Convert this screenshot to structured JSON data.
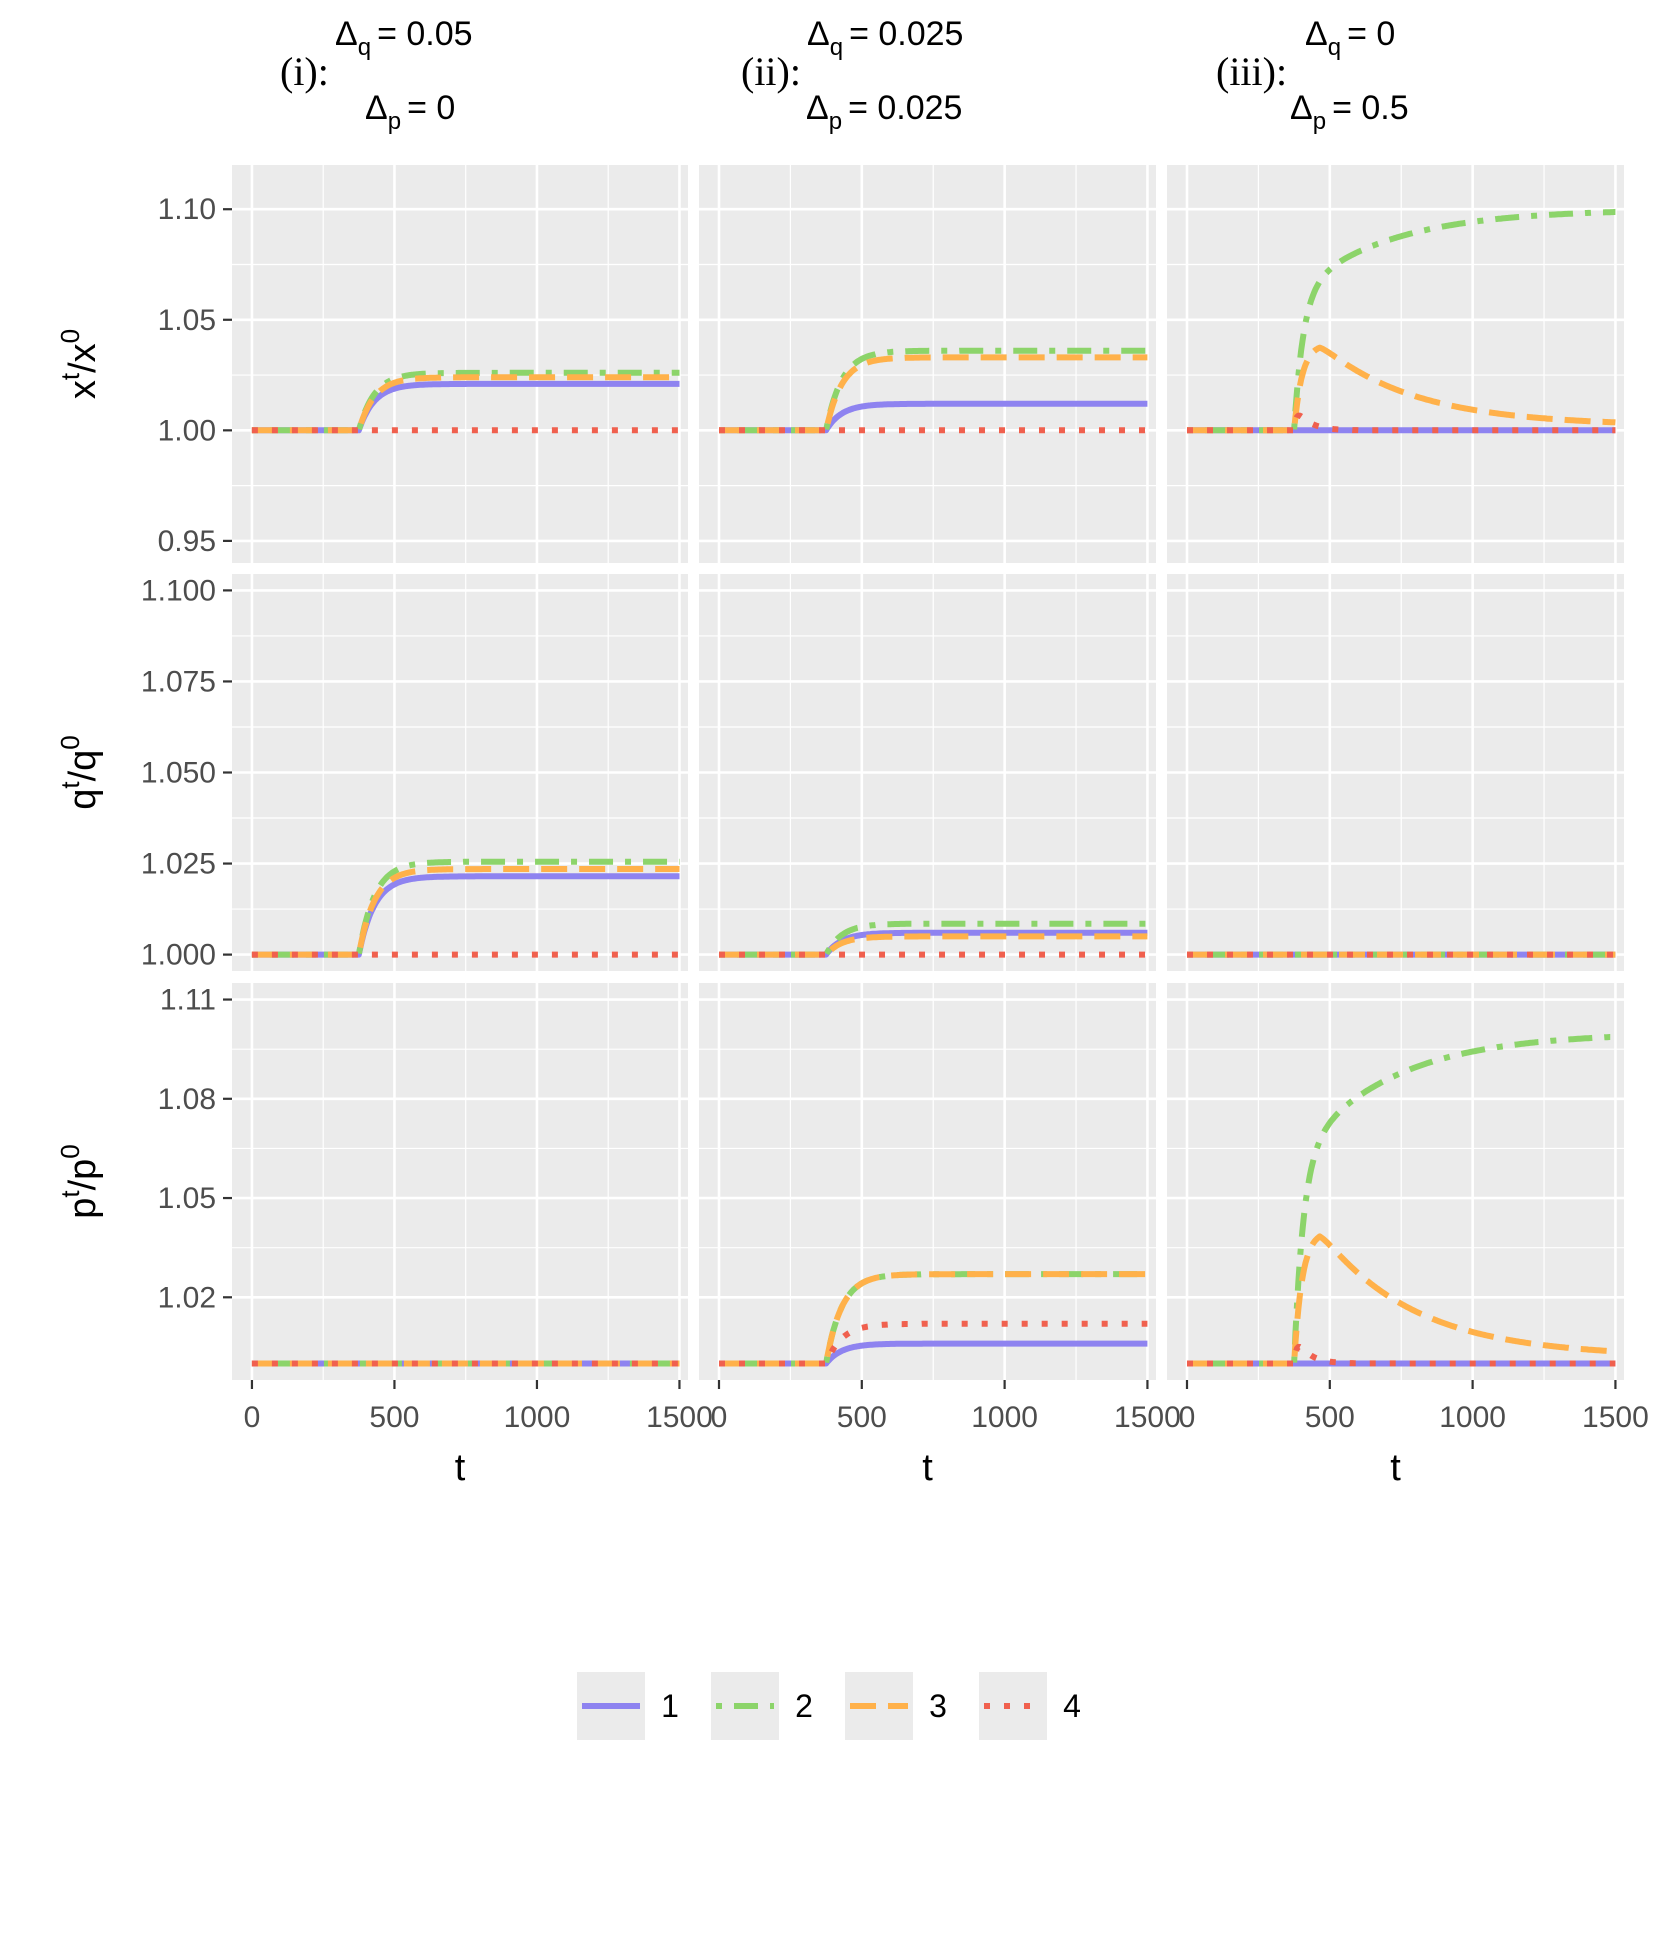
{
  "chart_data": {
    "type": "line",
    "x_label": "t",
    "x_ticks": [
      "0",
      "500",
      "1000",
      "1500"
    ],
    "xlim": [
      -70,
      1530
    ],
    "columns": [
      {
        "id": "i",
        "label": "(i):",
        "dq_sym": "Δ",
        "dq_sub": "q",
        "dq_val": "= 0.05",
        "dp_sym": "Δ",
        "dp_sub": "p",
        "dp_val": "= 0"
      },
      {
        "id": "ii",
        "label": "(ii):",
        "dq_sym": "Δ",
        "dq_sub": "q",
        "dq_val": "= 0.025",
        "dp_sym": "Δ",
        "dp_sub": "p",
        "dp_val": "= 0.025"
      },
      {
        "id": "iii",
        "label": "(iii):",
        "dq_sym": "Δ",
        "dq_sub": "q",
        "dq_val": "= 0",
        "dp_sym": "Δ",
        "dp_sub": "p",
        "dp_val": "= 0.5"
      }
    ],
    "rows": [
      {
        "id": "x",
        "ylabel_base": "x",
        "ylabel_sup": "t",
        "ylabel_slash": "/",
        "ylabel_base2": "x",
        "ylabel_sup2": "0",
        "ylim": [
          0.94,
          1.12
        ],
        "ticks": [
          0.95,
          1.0,
          1.05,
          1.1
        ],
        "tick_labels": [
          "0.95",
          "1.00",
          "1.05",
          "1.10"
        ]
      },
      {
        "id": "q",
        "ylabel_base": "q",
        "ylabel_sup": "t",
        "ylabel_slash": "/",
        "ylabel_base2": "q",
        "ylabel_sup2": "0",
        "ylim": [
          0.9955,
          1.1045
        ],
        "ticks": [
          1.0,
          1.025,
          1.05,
          1.075,
          1.1
        ],
        "tick_labels": [
          "1.000",
          "1.025",
          "1.050",
          "1.075",
          "1.100"
        ]
      },
      {
        "id": "p",
        "ylabel_base": "p",
        "ylabel_sup": "t",
        "ylabel_slash": "/",
        "ylabel_base2": "p",
        "ylabel_sup2": "0",
        "ylim": [
          0.995,
          1.115
        ],
        "ticks": [
          1.02,
          1.05,
          1.08,
          1.11
        ],
        "tick_labels": [
          "1.02",
          "1.05",
          "1.08",
          "1.11"
        ]
      }
    ],
    "series": [
      {
        "name": "1",
        "color": "#8E83F0",
        "dash": "solid"
      },
      {
        "name": "2",
        "color": "#8CD46A",
        "dash": "dotdash"
      },
      {
        "name": "3",
        "color": "#FFB14A",
        "dash": "dashed"
      },
      {
        "name": "4",
        "color": "#F0604E",
        "dash": "dotted"
      }
    ],
    "curves": {
      "x": {
        "i": [
          {
            "kind": "step",
            "v1": 1.021
          },
          {
            "kind": "step",
            "v1": 1.026
          },
          {
            "kind": "step",
            "v1": 1.024
          },
          {
            "kind": "flat",
            "v": 1.0
          }
        ],
        "ii": [
          {
            "kind": "step",
            "v1": 1.012
          },
          {
            "kind": "step",
            "v1": 1.036
          },
          {
            "kind": "step",
            "v1": 1.033
          },
          {
            "kind": "flat",
            "v": 1.0
          }
        ],
        "iii": [
          {
            "kind": "flat",
            "v": 1.0
          },
          {
            "kind": "rise",
            "v1": 1.1
          },
          {
            "kind": "hump",
            "peak": 1.039,
            "end": 1.002
          },
          {
            "kind": "spike",
            "peak": 1.012
          }
        ]
      },
      "q": {
        "i": [
          {
            "kind": "step",
            "v1": 1.0215
          },
          {
            "kind": "step",
            "v1": 1.0255
          },
          {
            "kind": "step",
            "v1": 1.0235
          },
          {
            "kind": "flat",
            "v": 1.0
          }
        ],
        "ii": [
          {
            "kind": "step",
            "v1": 1.006
          },
          {
            "kind": "step",
            "v1": 1.0085
          },
          {
            "kind": "step",
            "v1": 1.005
          },
          {
            "kind": "flat",
            "v": 1.0
          }
        ],
        "iii": [
          {
            "kind": "flat",
            "v": 1.0
          },
          {
            "kind": "flat",
            "v": 1.0
          },
          {
            "kind": "flat",
            "v": 1.0
          },
          {
            "kind": "flat",
            "v": 1.0
          }
        ]
      },
      "p": {
        "i": [
          {
            "kind": "flat",
            "v": 1.0
          },
          {
            "kind": "flat",
            "v": 1.0
          },
          {
            "kind": "flat",
            "v": 1.0
          },
          {
            "kind": "flat",
            "v": 1.0
          }
        ],
        "ii": [
          {
            "kind": "step",
            "v1": 1.006
          },
          {
            "kind": "step",
            "v1": 1.027
          },
          {
            "kind": "step",
            "v1": 1.027
          },
          {
            "kind": "step",
            "v1": 1.012
          }
        ],
        "iii": [
          {
            "kind": "flat",
            "v": 1.0
          },
          {
            "kind": "rise",
            "v1": 1.1
          },
          {
            "kind": "hump",
            "peak": 1.04,
            "end": 1.002
          },
          {
            "kind": "spike",
            "peak": 1.009
          }
        ]
      }
    },
    "legend": {
      "position": "bottom",
      "labels": [
        "1",
        "2",
        "3",
        "4"
      ]
    }
  }
}
